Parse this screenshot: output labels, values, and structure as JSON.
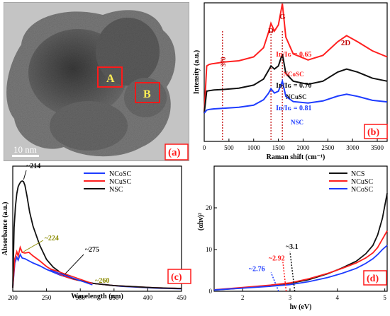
{
  "panel_a": {
    "panel_label": "(a)",
    "regions": [
      {
        "label": "A"
      },
      {
        "label": "B"
      }
    ],
    "scale_bar_label": "10 nm"
  },
  "chart_data": [
    {
      "panel": "(b)",
      "type": "line",
      "xlabel": "Raman shift (cm⁻¹)",
      "ylabel": "Intensity (a.u.)",
      "xlim": [
        0,
        3700
      ],
      "xticks": [
        0,
        500,
        1000,
        1500,
        2000,
        2500,
        3000,
        3500
      ],
      "peak_labels": [
        {
          "text": "D",
          "x": 1350
        },
        {
          "text": "G",
          "x": 1580
        },
        {
          "text": "2D",
          "x": 2880
        },
        {
          "text": "370",
          "x": 370
        }
      ],
      "series": [
        {
          "name": "NCoSC",
          "color": "#ff2020",
          "ratio": "Iᴅ/Iɢ = 0.65",
          "x": [
            0,
            50,
            100,
            150,
            200,
            400,
            700,
            1000,
            1200,
            1300,
            1350,
            1420,
            1500,
            1580,
            1650,
            1800,
            2100,
            2400,
            2700,
            2880,
            3100,
            3400,
            3700
          ],
          "y": [
            0.0,
            1.55,
            1.6,
            1.62,
            1.63,
            1.68,
            1.72,
            1.85,
            2.15,
            2.65,
            2.95,
            2.7,
            2.9,
            3.6,
            2.5,
            1.95,
            1.75,
            1.9,
            2.35,
            2.55,
            2.35,
            2.05,
            1.85
          ]
        },
        {
          "name": "NCuSC",
          "color": "#111111",
          "ratio": "Iᴅ/Iɢ = 0.70",
          "x": [
            0,
            50,
            100,
            150,
            200,
            400,
            700,
            1000,
            1200,
            1300,
            1350,
            1420,
            1500,
            1580,
            1650,
            1800,
            2100,
            2400,
            2700,
            2880,
            3100,
            3400,
            3700
          ],
          "y": [
            0.0,
            0.72,
            0.74,
            0.75,
            0.76,
            0.78,
            0.82,
            0.92,
            1.12,
            1.4,
            1.55,
            1.45,
            1.55,
            1.95,
            1.3,
            1.05,
            0.95,
            1.05,
            1.35,
            1.45,
            1.35,
            1.15,
            1.05
          ]
        },
        {
          "name": "NSC",
          "color": "#1e3cff",
          "ratio": "Iᴅ/Iɢ = 0.81",
          "x": [
            0,
            50,
            100,
            150,
            200,
            400,
            700,
            1000,
            1200,
            1300,
            1350,
            1420,
            1500,
            1580,
            1650,
            1800,
            2100,
            2400,
            2700,
            2880,
            3100,
            3400,
            3700
          ],
          "y": [
            0.0,
            0.1,
            0.12,
            0.13,
            0.14,
            0.16,
            0.19,
            0.26,
            0.44,
            0.65,
            0.8,
            0.66,
            0.72,
            1.05,
            0.55,
            0.38,
            0.33,
            0.4,
            0.56,
            0.62,
            0.55,
            0.42,
            0.37
          ]
        }
      ],
      "dotted_lines_x": [
        370,
        1350,
        1580
      ]
    },
    {
      "panel": "(c)",
      "type": "line",
      "xlabel": "Wavelength (nm)",
      "ylabel": "Absorbance (a.u.)",
      "xlim": [
        200,
        450
      ],
      "xticks": [
        200,
        250,
        300,
        350,
        400,
        450
      ],
      "annotations": [
        {
          "text": "~214",
          "x": 214,
          "color": "#111111"
        },
        {
          "text": "~224",
          "x": 224,
          "color": "#8b8b00"
        },
        {
          "text": "~275",
          "x": 275,
          "color": "#111111"
        },
        {
          "text": "~260",
          "x": 260,
          "color": "#8b8b00"
        }
      ],
      "series": [
        {
          "name": "NCoSC",
          "color": "#1e3cff",
          "x": [
            200,
            203,
            206,
            208,
            211,
            214,
            218,
            224,
            230,
            240,
            250,
            260,
            270,
            280,
            290,
            300,
            310,
            320,
            330,
            340,
            350,
            360,
            370,
            380,
            390,
            400,
            410,
            420,
            430,
            440,
            450
          ],
          "y": [
            0.05,
            0.4,
            0.48,
            0.44,
            0.52,
            0.47,
            0.46,
            0.43,
            0.4,
            0.36,
            0.31,
            0.27,
            0.23,
            0.2,
            0.17,
            0.15,
            0.13,
            0.11,
            0.1,
            0.09,
            0.08,
            0.07,
            0.065,
            0.06,
            0.055,
            0.05,
            0.045,
            0.042,
            0.04,
            0.038,
            0.035
          ]
        },
        {
          "name": "NCuSC",
          "color": "#ff2020",
          "x": [
            200,
            203,
            206,
            208,
            211,
            214,
            218,
            224,
            230,
            240,
            250,
            260,
            270,
            280,
            290,
            300,
            310,
            320,
            330,
            340,
            350,
            360,
            370,
            380,
            390,
            400,
            410,
            420,
            430,
            440,
            450
          ],
          "y": [
            0.05,
            0.46,
            0.56,
            0.5,
            0.62,
            0.55,
            0.54,
            0.55,
            0.5,
            0.43,
            0.35,
            0.29,
            0.24,
            0.2,
            0.17,
            0.15,
            0.13,
            0.11,
            0.1,
            0.09,
            0.08,
            0.075,
            0.07,
            0.065,
            0.06,
            0.055,
            0.05,
            0.047,
            0.044,
            0.042,
            0.04
          ]
        },
        {
          "name": "NSC",
          "color": "#111111",
          "x": [
            200,
            202,
            204,
            206,
            208,
            210,
            212,
            214,
            216,
            218,
            221,
            225,
            230,
            240,
            250,
            260,
            270,
            280,
            290,
            300,
            310,
            320,
            330,
            340,
            350,
            360,
            370,
            380,
            390,
            400,
            410,
            420,
            430,
            440,
            450
          ],
          "y": [
            0.05,
            0.9,
            1.2,
            1.38,
            1.48,
            1.52,
            1.55,
            1.56,
            1.55,
            1.5,
            1.35,
            1.12,
            0.92,
            0.65,
            0.45,
            0.34,
            0.27,
            0.22,
            0.18,
            0.15,
            0.13,
            0.11,
            0.1,
            0.09,
            0.08,
            0.075,
            0.07,
            0.065,
            0.06,
            0.055,
            0.05,
            0.047,
            0.044,
            0.042,
            0.04
          ]
        }
      ]
    },
    {
      "panel": "(d)",
      "type": "line",
      "xlabel": "hν (eV)",
      "ylabel": "(αhν)²",
      "xlim": [
        1.4,
        5.05
      ],
      "ylim": [
        0,
        30
      ],
      "xticks": [
        2,
        3,
        4,
        5
      ],
      "yticks": [
        0,
        10,
        20
      ],
      "annotations": [
        {
          "text": "~2.76",
          "x": 2.76,
          "color": "#1e3cff"
        },
        {
          "text": "~2.92",
          "x": 2.92,
          "color": "#ff2020"
        },
        {
          "text": "~3.1",
          "x": 3.1,
          "color": "#111111"
        }
      ],
      "series": [
        {
          "name": "NCS",
          "color": "#111111",
          "x": [
            1.4,
            2.0,
            2.6,
            3.0,
            3.4,
            3.8,
            4.1,
            4.4,
            4.6,
            4.75,
            4.85,
            4.95,
            5.05
          ],
          "y": [
            0.3,
            0.8,
            1.4,
            1.9,
            2.8,
            4.2,
            5.6,
            7.2,
            9.0,
            11.0,
            13.5,
            17.5,
            23.5
          ]
        },
        {
          "name": "NCuSC",
          "color": "#ff2020",
          "x": [
            1.4,
            2.0,
            2.6,
            3.0,
            3.4,
            3.8,
            4.1,
            4.4,
            4.6,
            4.75,
            4.85,
            4.95,
            5.05
          ],
          "y": [
            0.35,
            0.9,
            1.5,
            2.0,
            3.0,
            4.3,
            5.5,
            6.8,
            8.0,
            9.2,
            10.5,
            12.5,
            14.5
          ]
        },
        {
          "name": "NCoSC",
          "color": "#1e3cff",
          "x": [
            1.4,
            2.0,
            2.6,
            3.0,
            3.4,
            3.8,
            4.1,
            4.4,
            4.6,
            4.75,
            4.85,
            4.95,
            5.05
          ],
          "y": [
            0.3,
            0.75,
            1.2,
            1.6,
            2.3,
            3.3,
            4.3,
            5.5,
            6.7,
            7.8,
            8.8,
            10.0,
            11.0
          ]
        }
      ],
      "tangents": [
        {
          "color": "#1e3cff",
          "x_intercept": 2.76
        },
        {
          "color": "#ff2020",
          "x_intercept": 2.92
        },
        {
          "color": "#111111",
          "x_intercept": 3.1
        }
      ]
    }
  ]
}
